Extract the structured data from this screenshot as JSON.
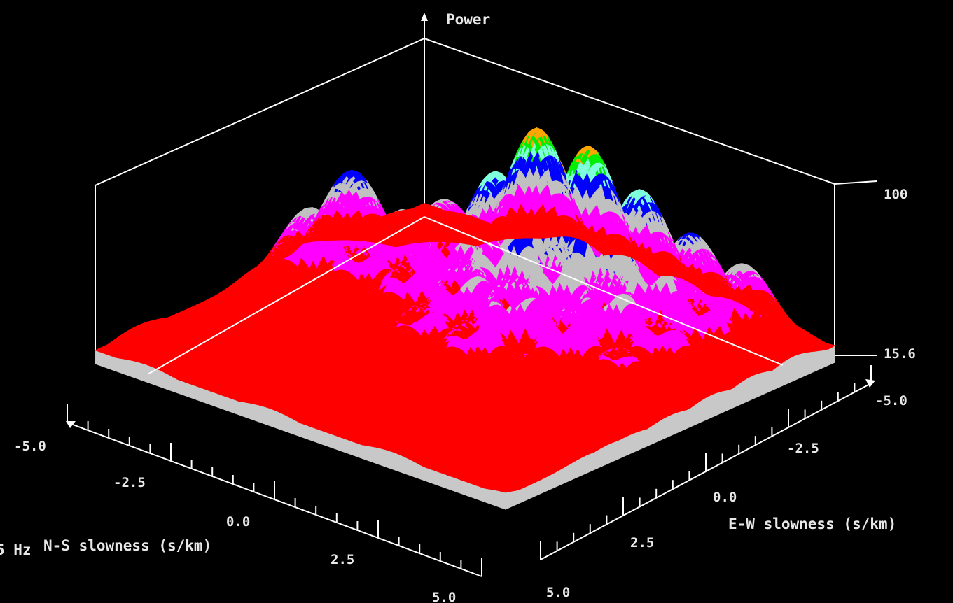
{
  "chart_data": {
    "type": "surface3d",
    "z_axis": {
      "label": "Power",
      "min_label": "15.6",
      "max_label": "100",
      "range": [
        15.6,
        100
      ]
    },
    "x_axis": {
      "label": "N-S slowness (s/km)",
      "range": [
        -5.0,
        5.0
      ],
      "tick_labels": [
        "-5.0",
        "-2.5",
        "0.0",
        "2.5",
        "5.0"
      ]
    },
    "y_axis": {
      "label": "E-W slowness (s/km)",
      "range": [
        -5.0,
        5.0
      ],
      "tick_labels": [
        "-5.0",
        "-2.5",
        "0.0",
        "2.5",
        "5.0"
      ]
    },
    "cut_off_label": "5 Hz",
    "color_bands": [
      "#ff0000",
      "#ff00ff",
      "#c0c0c0",
      "#0000ff",
      "#80ffdd",
      "#00ee00",
      "#ffa500",
      "#ffff00"
    ],
    "skirt_color": "#c8c8c8",
    "peaks": [
      {
        "ns": -2.5,
        "ew": -2.5,
        "power": 58
      },
      {
        "ns": -2.5,
        "ew": -1.25,
        "power": 62
      },
      {
        "ns": -2.5,
        "ew": 0.0,
        "power": 55
      },
      {
        "ns": -3.75,
        "ew": -1.25,
        "power": 72
      },
      {
        "ns": -3.75,
        "ew": 0.0,
        "power": 63
      },
      {
        "ns": -1.25,
        "ew": -3.75,
        "power": 92
      },
      {
        "ns": -1.25,
        "ew": -2.5,
        "power": 80
      },
      {
        "ns": -1.25,
        "ew": -1.25,
        "power": 68
      },
      {
        "ns": -1.25,
        "ew": 0.0,
        "power": 58
      },
      {
        "ns": 0.0,
        "ew": -3.75,
        "power": 92
      },
      {
        "ns": 0.0,
        "ew": -2.5,
        "power": 100
      },
      {
        "ns": 0.0,
        "ew": -1.25,
        "power": 82
      },
      {
        "ns": 0.0,
        "ew": 0.0,
        "power": 65
      },
      {
        "ns": 0.0,
        "ew": 1.25,
        "power": 52
      },
      {
        "ns": 1.25,
        "ew": -3.75,
        "power": 80
      },
      {
        "ns": 1.25,
        "ew": -2.5,
        "power": 88
      },
      {
        "ns": 1.25,
        "ew": -1.25,
        "power": 72
      },
      {
        "ns": 1.25,
        "ew": 0.0,
        "power": 68
      },
      {
        "ns": 1.25,
        "ew": 1.25,
        "power": 55
      },
      {
        "ns": 2.5,
        "ew": -3.75,
        "power": 68
      },
      {
        "ns": 2.5,
        "ew": -2.5,
        "power": 72
      },
      {
        "ns": 2.5,
        "ew": -1.25,
        "power": 68
      },
      {
        "ns": 2.5,
        "ew": 0.0,
        "power": 58
      },
      {
        "ns": 3.75,
        "ew": -3.75,
        "power": 62
      },
      {
        "ns": 3.75,
        "ew": -2.5,
        "power": 58
      },
      {
        "ns": 3.75,
        "ew": -1.25,
        "power": 55
      },
      {
        "ns": 3.75,
        "ew": 0.0,
        "power": 48
      },
      {
        "ns": -1.25,
        "ew": 1.25,
        "power": 42
      },
      {
        "ns": 2.5,
        "ew": 1.25,
        "power": 45
      },
      {
        "ns": 3.75,
        "ew": 1.25,
        "power": 42
      },
      {
        "ns": 3.75,
        "ew": 2.5,
        "power": 38
      }
    ]
  }
}
